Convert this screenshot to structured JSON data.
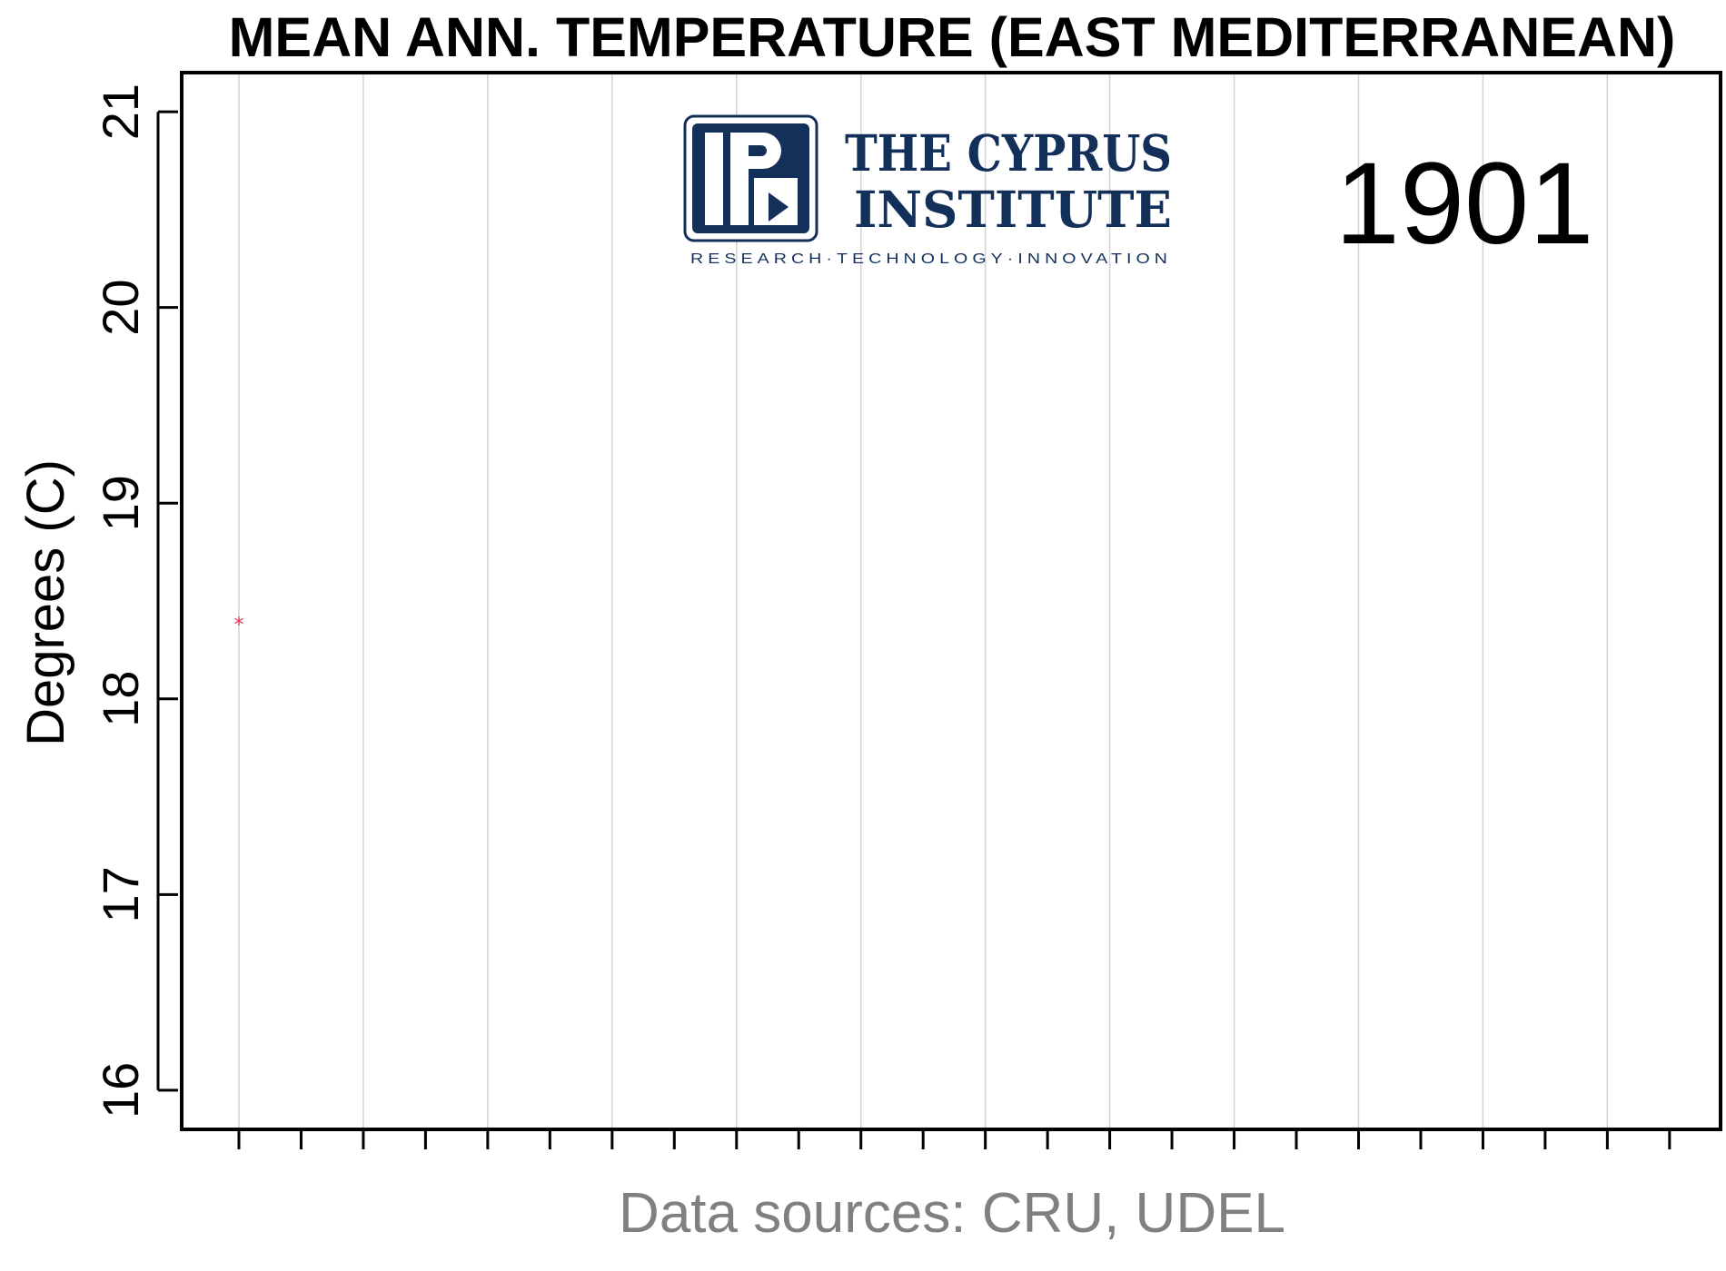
{
  "chart_data": {
    "type": "scatter",
    "title": "MEAN ANN. TEMPERATURE (EAST MEDITERRANEAN)",
    "ylabel": "Degrees (C)",
    "xlabel": "Data sources: CRU, UDEL",
    "ylim": [
      15.8,
      21.2
    ],
    "yticks": [
      16,
      17,
      18,
      19,
      20,
      21
    ],
    "xlim": [
      1896.4,
      2020.1
    ],
    "x_tick_positions": [
      1901,
      1906,
      1911,
      1916,
      1921,
      1926,
      1931,
      1936,
      1941,
      1946,
      1951,
      1956,
      1961,
      1966,
      1971,
      1976,
      1981,
      1986,
      1991,
      1996,
      2001,
      2006,
      2011,
      2016
    ],
    "x_grid_positions": [
      1901,
      1911,
      1921,
      1931,
      1941,
      1951,
      1961,
      1971,
      1981,
      1991,
      2001,
      2011
    ],
    "grid": "vertical",
    "current_year": "1901",
    "series": [
      {
        "x": [
          1901
        ],
        "y": [
          18.4
        ],
        "marker": "*",
        "color": "#e0344f"
      }
    ],
    "colors": {
      "grid": "#d3d3d3",
      "frame": "#000000",
      "source_text": "#808080",
      "point": "#e0344f"
    }
  },
  "logo": {
    "line1": "THE CYPRUS",
    "line2": "INSTITUTE",
    "tagline": "RESEARCH·TECHNOLOGY·INNOVATION",
    "color": "#13305b"
  }
}
